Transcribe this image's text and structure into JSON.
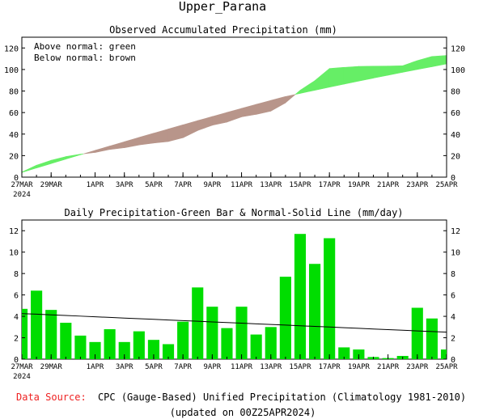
{
  "header": {
    "title": "Upper_Parana"
  },
  "footer": {
    "source_label": "Data Source:",
    "source_text": "CPC (Gauge-Based) Unified Precipitation (Climatology 1981-2010)",
    "updated": "(updated on 00Z25APR2024)"
  },
  "colors": {
    "above_normal": "#66ee66",
    "below_normal": "#b8958a",
    "bar": "#00dd00",
    "source_label": "#ee2222"
  },
  "chart_data": [
    {
      "type": "area",
      "title": "Observed Accumulated Precipitation (mm)",
      "legend": [
        "Above normal: green",
        "Below normal: brown"
      ],
      "legend_position": "top-left",
      "ylim": [
        0,
        130
      ],
      "yticks": [
        0,
        20,
        40,
        60,
        80,
        100,
        120
      ],
      "x_tick_labels": [
        "27MAR",
        "29MAR",
        "1APR",
        "3APR",
        "5APR",
        "7APR",
        "9APR",
        "11APR",
        "13APR",
        "15APR",
        "17APR",
        "19APR",
        "21APR",
        "23APR",
        "25APR"
      ],
      "x_tick_positions": [
        0,
        2,
        5,
        7,
        9,
        11,
        13,
        15,
        17,
        19,
        21,
        23,
        25,
        27,
        29
      ],
      "x_year_label": "2024",
      "observed": [
        4.7,
        11.1,
        15.7,
        19.1,
        21.3,
        22.9,
        25.7,
        27.3,
        29.9,
        31.7,
        33.1,
        36.6,
        43.3,
        48.2,
        51.1,
        56.0,
        58.3,
        61.3,
        69.0,
        80.7,
        89.6,
        100.9,
        102.0,
        102.9,
        103.1,
        103.2,
        103.5,
        108.3,
        112.1,
        113.0
      ],
      "normal": [
        4.3,
        8.5,
        12.6,
        16.7,
        20.8,
        24.9,
        28.9,
        32.9,
        36.9,
        40.8,
        44.7,
        48.6,
        52.5,
        56.3,
        60.1,
        63.9,
        67.6,
        71.3,
        74.9,
        77.8,
        80.7,
        83.6,
        86.4,
        89.2,
        92.0,
        94.7,
        97.4,
        100.0,
        102.6,
        105.2
      ]
    },
    {
      "type": "bar",
      "title": "Daily Precipitation-Green Bar & Normal-Solid Line (mm/day)",
      "ylim": [
        0,
        13
      ],
      "yticks": [
        0,
        2,
        4,
        6,
        8,
        10,
        12
      ],
      "x_tick_labels": [
        "27MAR",
        "29MAR",
        "1APR",
        "3APR",
        "5APR",
        "7APR",
        "9APR",
        "11APR",
        "13APR",
        "15APR",
        "17APR",
        "19APR",
        "21APR",
        "23APR",
        "25APR"
      ],
      "x_tick_positions": [
        0,
        2,
        5,
        7,
        9,
        11,
        13,
        15,
        17,
        19,
        21,
        23,
        25,
        27,
        29
      ],
      "x_year_label": "2024",
      "values": [
        4.7,
        6.4,
        4.6,
        3.4,
        2.2,
        1.6,
        2.8,
        1.6,
        2.6,
        1.8,
        1.4,
        3.5,
        6.7,
        4.9,
        2.9,
        4.9,
        2.3,
        3.0,
        7.7,
        11.7,
        8.9,
        11.3,
        1.1,
        0.9,
        0.2,
        0.1,
        0.3,
        4.8,
        3.8,
        0.9
      ],
      "normal": [
        4.25,
        4.2,
        4.14,
        4.08,
        4.02,
        3.96,
        3.9,
        3.84,
        3.78,
        3.72,
        3.66,
        3.6,
        3.54,
        3.48,
        3.42,
        3.36,
        3.3,
        3.24,
        3.18,
        3.12,
        3.06,
        3.0,
        2.94,
        2.88,
        2.82,
        2.76,
        2.7,
        2.64,
        2.58,
        2.52
      ]
    }
  ]
}
